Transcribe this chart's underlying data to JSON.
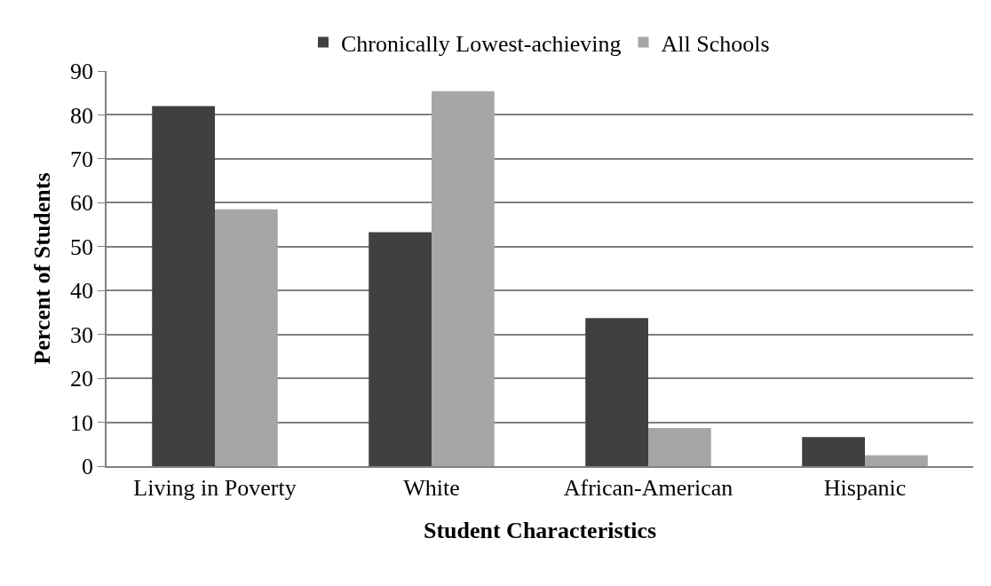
{
  "chart_data": {
    "type": "bar",
    "xlabel": "Student Characteristics",
    "ylabel": "Percent of Students",
    "categories": [
      "Living in Poverty",
      "White",
      "African-American",
      "Hispanic"
    ],
    "series": [
      {
        "name": "Chronically Lowest-achieving",
        "color": "#404040",
        "values": [
          82,
          53.3,
          33.7,
          6.6
        ]
      },
      {
        "name": "All Schools",
        "color": "#a6a6a6",
        "values": [
          58.5,
          85.4,
          8.7,
          2.5
        ]
      }
    ],
    "ylim": [
      0,
      90
    ],
    "yticks": [
      0,
      10,
      20,
      30,
      40,
      50,
      60,
      70,
      80,
      90
    ],
    "grid": "y",
    "legend": "top"
  }
}
